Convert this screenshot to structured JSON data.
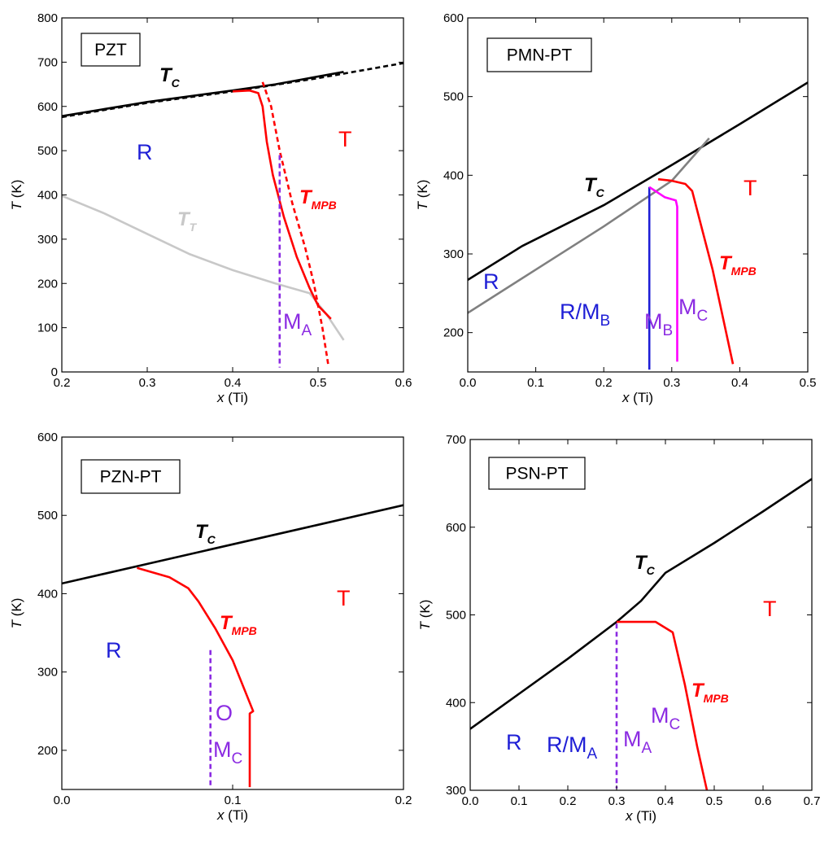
{
  "chart_data": [
    {
      "id": "pzt",
      "type": "line",
      "title": "PZT",
      "xlabel": {
        "var": "x",
        "unit": " (Ti)"
      },
      "ylabel": {
        "var": "T",
        "unit": " (K)"
      },
      "xlim": [
        0.2,
        0.6
      ],
      "ylim": [
        0,
        800
      ],
      "xticks": [
        0.2,
        0.3,
        0.4,
        0.5,
        0.6
      ],
      "xtick_labels": [
        "0.2",
        "0.3",
        "0.4",
        "0.5",
        "0.6"
      ],
      "yticks": [
        0,
        100,
        200,
        300,
        400,
        500,
        600,
        700,
        800
      ],
      "ytick_labels": [
        "0",
        "100",
        "200",
        "300",
        "400",
        "500",
        "600",
        "700",
        "800"
      ],
      "series": [
        {
          "color": "#000000",
          "width": 2.6,
          "dash": false,
          "points": [
            [
              0.2,
              578
            ],
            [
              0.3,
              610
            ],
            [
              0.4,
              636
            ],
            [
              0.45,
              650
            ],
            [
              0.53,
              678
            ]
          ]
        },
        {
          "color": "#000000",
          "width": 2.6,
          "dash": true,
          "points": [
            [
              0.2,
              576
            ],
            [
              0.3,
              608
            ],
            [
              0.4,
              634
            ],
            [
              0.5,
              664
            ],
            [
              0.6,
              698
            ]
          ]
        },
        {
          "color": "#c8c8c8",
          "width": 2.6,
          "dash": false,
          "points": [
            [
              0.2,
              398
            ],
            [
              0.25,
              358
            ],
            [
              0.3,
              312
            ],
            [
              0.35,
              266
            ],
            [
              0.4,
              230
            ],
            [
              0.45,
              200
            ],
            [
              0.49,
              178
            ],
            [
              0.51,
              130
            ],
            [
              0.53,
              72
            ]
          ]
        },
        {
          "color": "#ff0000",
          "width": 2.6,
          "dash": false,
          "points": [
            [
              0.4,
              634
            ],
            [
              0.42,
              636
            ],
            [
              0.43,
              630
            ],
            [
              0.435,
              600
            ],
            [
              0.44,
              520
            ],
            [
              0.447,
              445
            ],
            [
              0.46,
              350
            ],
            [
              0.475,
              260
            ],
            [
              0.49,
              190
            ],
            [
              0.5,
              150
            ],
            [
              0.515,
              120
            ]
          ]
        },
        {
          "color": "#ff0000",
          "width": 2.6,
          "dash": true,
          "points": [
            [
              0.435,
              655
            ],
            [
              0.445,
              600
            ],
            [
              0.455,
              500
            ],
            [
              0.47,
              380
            ],
            [
              0.485,
              280
            ],
            [
              0.495,
              200
            ],
            [
              0.505,
              100
            ],
            [
              0.512,
              15
            ]
          ]
        },
        {
          "color": "#8b2be2",
          "width": 2.6,
          "dash": true,
          "points": [
            [
              0.455,
              490
            ],
            [
              0.455,
              10
            ]
          ]
        }
      ],
      "labels": [
        {
          "text": "R",
          "color": "#1f1fd6",
          "x": 0.2,
          "y": 500,
          "style": "region"
        },
        {
          "text": "T",
          "color": "#ff0000",
          "x": 0.43,
          "y": 520,
          "style": "region"
        },
        {
          "text": "T",
          "sub": "C",
          "color": "#000000",
          "style": "bold"
        },
        {
          "text": "T",
          "sub": "T",
          "color": "#c8c8c8",
          "style": "bold"
        },
        {
          "text": "T",
          "sub": "MPB",
          "color": "#ff0000",
          "style": "bold"
        },
        {
          "text": "M",
          "sub": "A",
          "color": "#8b2be2",
          "style": "region"
        }
      ]
    },
    {
      "id": "pmn",
      "type": "line",
      "title": "PMN-PT",
      "xlabel": {
        "var": "x",
        "unit": " (Ti)"
      },
      "ylabel": {
        "var": "T",
        "unit": " (K)"
      },
      "xlim": [
        0.0,
        0.5
      ],
      "ylim": [
        150,
        600
      ],
      "xticks": [
        0.0,
        0.1,
        0.2,
        0.3,
        0.4,
        0.5
      ],
      "xtick_labels": [
        "0.0",
        "0.1",
        "0.2",
        "0.3",
        "0.4",
        "0.5"
      ],
      "yticks": [
        200,
        300,
        400,
        500,
        600
      ],
      "ytick_labels": [
        "200",
        "300",
        "400",
        "500",
        "600"
      ],
      "series": [
        {
          "color": "#000000",
          "width": 2.6,
          "dash": false,
          "points": [
            [
              0.0,
              267
            ],
            [
              0.08,
              310
            ],
            [
              0.2,
              362
            ],
            [
              0.3,
              413
            ],
            [
              0.4,
              465
            ],
            [
              0.5,
              518
            ]
          ]
        },
        {
          "color": "#808080",
          "width": 2.6,
          "dash": false,
          "points": [
            [
              0.0,
              225
            ],
            [
              0.1,
              280
            ],
            [
              0.2,
              335
            ],
            [
              0.3,
              393
            ],
            [
              0.355,
              447
            ]
          ]
        },
        {
          "color": "#1f1fd6",
          "width": 2.6,
          "dash": false,
          "points": [
            [
              0.267,
              385
            ],
            [
              0.267,
              153
            ]
          ]
        },
        {
          "color": "#ff00ff",
          "width": 2.6,
          "dash": false,
          "points": [
            [
              0.267,
              385
            ],
            [
              0.29,
              372
            ],
            [
              0.306,
              368
            ],
            [
              0.308,
              360
            ],
            [
              0.308,
              163
            ]
          ]
        },
        {
          "color": "#ff0000",
          "width": 2.6,
          "dash": false,
          "points": [
            [
              0.28,
              395
            ],
            [
              0.3,
              393
            ],
            [
              0.32,
              389
            ],
            [
              0.33,
              380
            ],
            [
              0.345,
              330
            ],
            [
              0.36,
              280
            ],
            [
              0.375,
              220
            ],
            [
              0.39,
              160
            ]
          ]
        }
      ],
      "labels": [
        {
          "text": "T",
          "sub": "C",
          "color": "#000000",
          "style": "bold"
        },
        {
          "text": "T",
          "color": "#ff0000",
          "style": "region"
        },
        {
          "text": "R",
          "color": "#1f1fd6",
          "style": "region"
        },
        {
          "text": "R/M",
          "sub": "B",
          "color": "#1f1fd6",
          "style": "region"
        },
        {
          "text": "M",
          "sub": "B",
          "color": "#8b2be2",
          "style": "region"
        },
        {
          "text": "M",
          "sub": "C",
          "color": "#8b2be2",
          "style": "region"
        },
        {
          "text": "T",
          "sub": "MPB",
          "color": "#ff0000",
          "style": "bold"
        }
      ]
    },
    {
      "id": "pzn",
      "type": "line",
      "title": "PZN-PT",
      "xlabel": {
        "var": "x",
        "unit": " (Ti)"
      },
      "ylabel": {
        "var": "T",
        "unit": " (K)"
      },
      "xlim": [
        0.0,
        0.2
      ],
      "ylim": [
        150,
        600
      ],
      "xticks": [
        0.0,
        0.1,
        0.2
      ],
      "xtick_labels": [
        "0.0",
        "0.1",
        "0.2"
      ],
      "yticks": [
        200,
        300,
        400,
        500,
        600
      ],
      "ytick_labels": [
        "200",
        "300",
        "400",
        "500",
        "600"
      ],
      "series": [
        {
          "color": "#000000",
          "width": 2.6,
          "dash": false,
          "points": [
            [
              0.0,
              413
            ],
            [
              0.05,
              438
            ],
            [
              0.1,
              463
            ],
            [
              0.15,
              488
            ],
            [
              0.2,
              513
            ]
          ]
        },
        {
          "color": "#ff0000",
          "width": 2.6,
          "dash": false,
          "points": [
            [
              0.044,
              433
            ],
            [
              0.063,
              421
            ],
            [
              0.074,
              407
            ],
            [
              0.08,
              390
            ],
            [
              0.09,
              355
            ],
            [
              0.1,
              315
            ],
            [
              0.112,
              250
            ],
            [
              0.11,
              247
            ],
            [
              0.11,
              153
            ]
          ]
        },
        {
          "color": "#8b2be2",
          "width": 2.6,
          "dash": true,
          "points": [
            [
              0.087,
              328
            ],
            [
              0.087,
              153
            ]
          ]
        }
      ],
      "labels": [
        {
          "text": "T",
          "sub": "C",
          "color": "#000000",
          "style": "bold"
        },
        {
          "text": "T",
          "color": "#ff0000",
          "style": "region"
        },
        {
          "text": "T",
          "sub": "MPB",
          "color": "#ff0000",
          "style": "bold"
        },
        {
          "text": "R",
          "color": "#1f1fd6",
          "style": "region"
        },
        {
          "text": "O",
          "color": "#8b2be2",
          "style": "region"
        },
        {
          "text": "M",
          "sub": "C",
          "color": "#8b2be2",
          "style": "region"
        }
      ]
    },
    {
      "id": "psn",
      "type": "line",
      "title": "PSN-PT",
      "xlabel": {
        "var": "x",
        "unit": " (Ti)"
      },
      "ylabel": {
        "var": "T",
        "unit": " (K)"
      },
      "xlim": [
        0.0,
        0.7
      ],
      "ylim": [
        300,
        700
      ],
      "xticks": [
        0.0,
        0.1,
        0.2,
        0.3,
        0.4,
        0.5,
        0.6,
        0.7
      ],
      "xtick_labels": [
        "0.0",
        "0.1",
        "0.2",
        "0.3",
        "0.4",
        "0.5",
        "0.6",
        "0.7"
      ],
      "yticks": [
        300,
        400,
        500,
        600,
        700
      ],
      "ytick_labels": [
        "300",
        "400",
        "500",
        "600",
        "700"
      ],
      "series": [
        {
          "color": "#000000",
          "width": 2.6,
          "dash": false,
          "points": [
            [
              0.0,
              370
            ],
            [
              0.1,
              410
            ],
            [
              0.2,
              450
            ],
            [
              0.3,
              492
            ],
            [
              0.35,
              516
            ],
            [
              0.4,
              548
            ],
            [
              0.5,
              582
            ],
            [
              0.6,
              618
            ],
            [
              0.7,
              655
            ]
          ]
        },
        {
          "color": "#ff0000",
          "width": 2.6,
          "dash": false,
          "points": [
            [
              0.3,
              492
            ],
            [
              0.38,
              492
            ],
            [
              0.415,
              480
            ],
            [
              0.44,
              420
            ],
            [
              0.465,
              350
            ],
            [
              0.485,
              300
            ]
          ]
        },
        {
          "color": "#8b2be2",
          "width": 2.6,
          "dash": true,
          "points": [
            [
              0.3,
              490
            ],
            [
              0.3,
              302
            ]
          ]
        }
      ],
      "labels": [
        {
          "text": "T",
          "sub": "C",
          "color": "#000000",
          "style": "bold"
        },
        {
          "text": "T",
          "color": "#ff0000",
          "style": "region"
        },
        {
          "text": "T",
          "sub": "MPB",
          "color": "#ff0000",
          "style": "bold"
        },
        {
          "text": "M",
          "sub": "C",
          "color": "#8b2be2",
          "style": "region"
        },
        {
          "text": "R",
          "color": "#1f1fd6",
          "style": "region"
        },
        {
          "text": "R/M",
          "sub": "A",
          "color": "#1f1fd6",
          "style": "region"
        },
        {
          "text": "M",
          "sub": "A",
          "color": "#8b2be2",
          "style": "region"
        }
      ]
    }
  ]
}
